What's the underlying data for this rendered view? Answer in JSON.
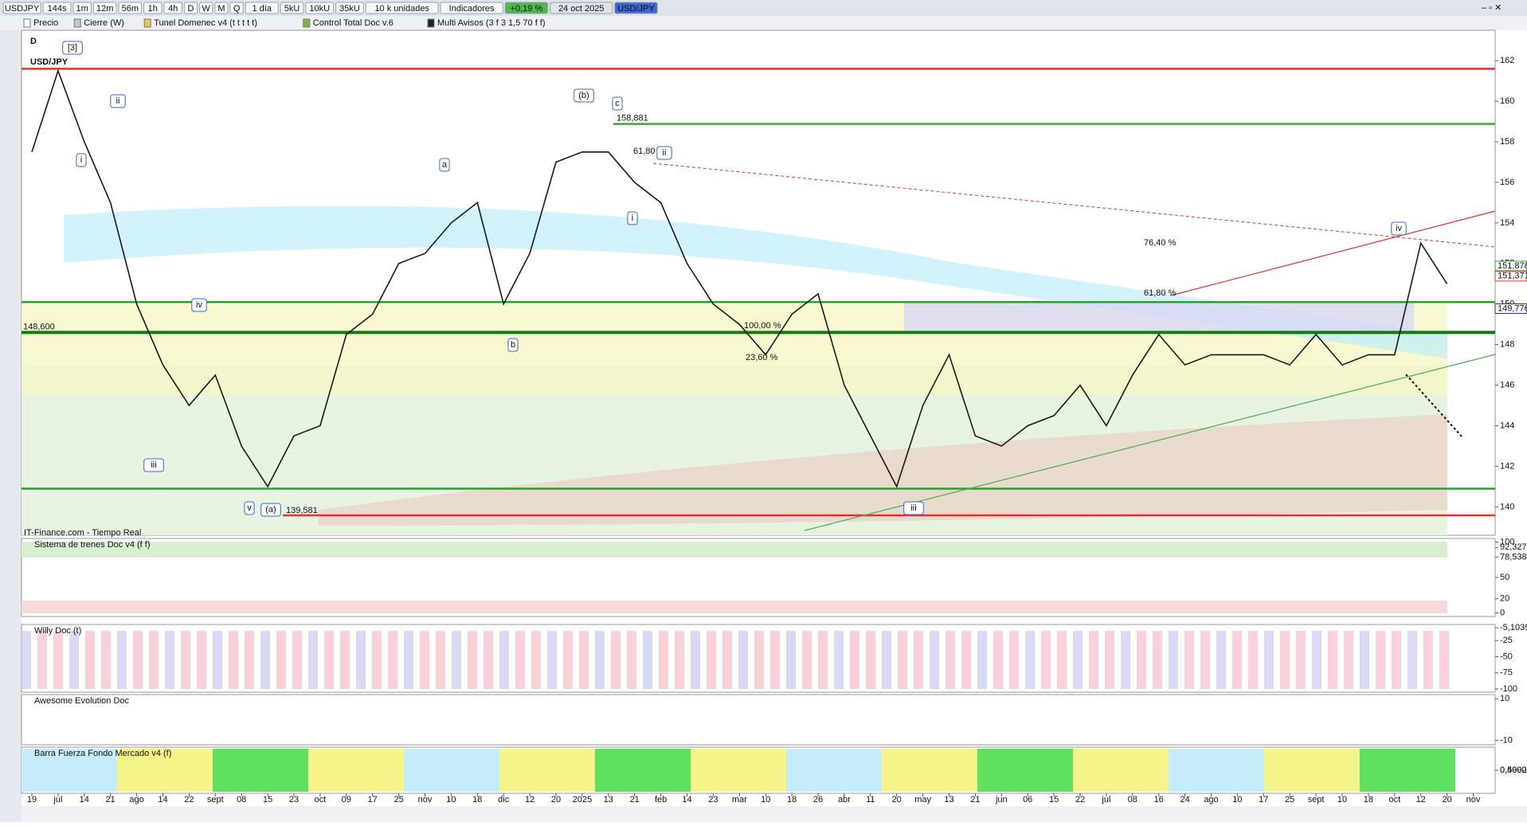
{
  "toolbar": {
    "symbol": "USDJPY",
    "buttons": [
      "144s",
      "1m",
      "12m",
      "56m",
      "1h",
      "4h",
      "D",
      "W",
      "M",
      "Q"
    ],
    "interval": "1 día",
    "units": [
      "5kU",
      "10kU",
      "35kU"
    ],
    "unit_select": "10 k unidades",
    "indicators": "Indicadores",
    "change": "+0,19 %",
    "date": "24 oct 2025",
    "pair": "USD/JPY"
  },
  "indicator_bar": [
    "Precio",
    "Cierre (W)",
    "Tunel Domenec v4 (t t t t t)",
    "Control Total Doc v.6",
    "Multi Avisos (3 f 3 1,5 70 f f)"
  ],
  "main_chart": {
    "period": "D",
    "title": "USD/JPY",
    "source": "IT-Finance.com - Tiempo Real",
    "x_labels": [
      "19",
      "jul",
      "14",
      "21",
      "ago",
      "14",
      "22",
      "sept",
      "08",
      "15",
      "23",
      "oct",
      "09",
      "17",
      "25",
      "nov",
      "10",
      "18",
      "dic",
      "12",
      "20",
      "2025",
      "13",
      "21",
      "feb",
      "14",
      "23",
      "mar",
      "10",
      "18",
      "26",
      "abr",
      "11",
      "20",
      "may",
      "13",
      "21",
      "jun",
      "06",
      "15",
      "22",
      "jul",
      "08",
      "16",
      "24",
      "ago",
      "10",
      "17",
      "25",
      "sept",
      "10",
      "18",
      "oct",
      "12",
      "20",
      "nov"
    ],
    "close": [
      157.5,
      161.5,
      158,
      155,
      150,
      147,
      145,
      146.5,
      143,
      141,
      143.5,
      144,
      148.5,
      149.5,
      152,
      152.5,
      154,
      155,
      150,
      152.5,
      157,
      157.5,
      157.5,
      156,
      155,
      152,
      150,
      149,
      147.5,
      149.5,
      150.5,
      146,
      143.5,
      141,
      145,
      147.5,
      143.5,
      143,
      144,
      144.5,
      146,
      144,
      146.5,
      148.5,
      147,
      147.5,
      147.5,
      147.5,
      147,
      148.5,
      147,
      147.5,
      147.5,
      153,
      151,
      null
    ],
    "ylim": [
      138.6,
      163.5
    ],
    "yticks": [
      140,
      142,
      144,
      146,
      148,
      150,
      152,
      154,
      156,
      158,
      160,
      162
    ],
    "levels": [
      {
        "value": 161.6,
        "color": "#e53030"
      },
      {
        "value": 158.881,
        "label": "158,881",
        "color": "#3aa83a"
      },
      {
        "value": 150.1,
        "color": "#2ca02c"
      },
      {
        "value": 148.6,
        "label": "148,600",
        "color": "#137a13"
      },
      {
        "value": 140.9,
        "color": "#2ca02c"
      },
      {
        "value": 139.581,
        "label": "139,581",
        "color": "#e53030"
      }
    ],
    "axis_markers": [
      {
        "value": 151.878,
        "label": "151,878",
        "color": "#2ca02c"
      },
      {
        "value": 151.371,
        "label": "151,371",
        "color": "#e53030"
      },
      {
        "value": 149.776,
        "label": "149,776",
        "color": "#1a2a9a"
      }
    ],
    "fib_labels": [
      "76,40 %",
      "61,80 %",
      "100,00 %",
      "23,60 %",
      "61,80 %"
    ],
    "wave_labels": [
      "[3]",
      "ii",
      "i",
      "iv",
      "iii",
      "v",
      "(a)",
      "(b)",
      "c",
      "a",
      "b",
      "i",
      "ii",
      "iv",
      "iii"
    ]
  },
  "panels": [
    {
      "title": "Sistema de trenes Doc v4 (f f)",
      "ylim": [
        -5,
        105
      ],
      "ticks": [
        100,
        {
          "value": 92.327,
          "label": "92,327"
        },
        {
          "value": 78.538,
          "label": "78,538"
        },
        50,
        20,
        0
      ]
    },
    {
      "title": "Willy Doc (t)",
      "ylim": [
        -105,
        0
      ],
      "ticks": [
        {
          "value": -5.1039,
          "label": "-5,1039"
        },
        -25,
        -50,
        -75,
        -100
      ]
    },
    {
      "title": "Awesome Evolution Doc",
      "ylim": [
        -12,
        12
      ],
      "ticks": [
        10,
        -10
      ]
    },
    {
      "title": "Barra Fuerza Fondo Mercado v4 (f)",
      "ylim": [
        0,
        1
      ],
      "ticks": [
        {
          "value": 0.5,
          "label": "0,5000"
        },
        {
          "value": 0.4992,
          "label": "0,4992"
        }
      ]
    }
  ]
}
